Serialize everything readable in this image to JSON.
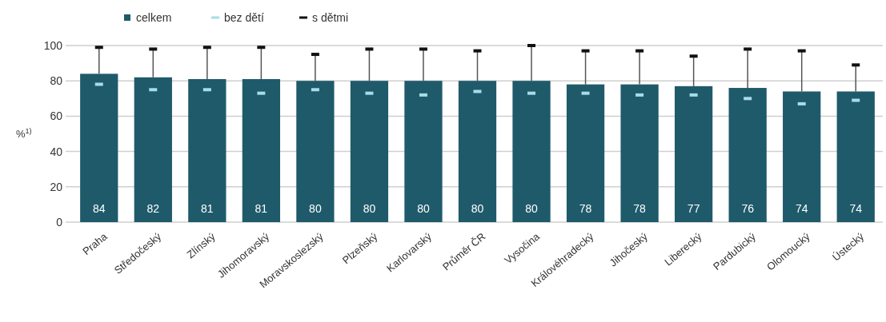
{
  "chart_data": {
    "type": "bar",
    "categories": [
      "Praha",
      "Středočeský",
      "Zlínský",
      "Jihomoravský",
      "Moravskoslezský",
      "Plzeňský",
      "Karlovarský",
      "Průměr ČR",
      "Vysočina",
      "Královéhradecký",
      "Jihočeský",
      "Liberecký",
      "Pardubický",
      "Olomoucký",
      "Ústecký"
    ],
    "ylabel": "%$^{1)}$",
    "ylim": [
      0,
      100
    ],
    "yticks": [
      0,
      20,
      40,
      60,
      80,
      100
    ],
    "grid": "y",
    "legend": "top left",
    "series": [
      {
        "name": "celkem",
        "color": "#1f5a6b",
        "values": [
          84,
          82,
          81,
          81,
          80,
          80,
          80,
          80,
          80,
          78,
          78,
          77,
          76,
          74,
          74
        ],
        "value_labels": [
          "84",
          "82",
          "81",
          "81",
          "80",
          "80",
          "80",
          "80",
          "80",
          "78",
          "78",
          "77",
          "76",
          "74",
          "74"
        ],
        "errors": [
          [
            84,
            99
          ],
          [
            82,
            98
          ],
          [
            81,
            99
          ],
          [
            81,
            99
          ],
          [
            80,
            95
          ],
          [
            80,
            98
          ],
          [
            80,
            98
          ],
          [
            80,
            97
          ],
          [
            80,
            100
          ],
          [
            78,
            97
          ],
          [
            78,
            97
          ],
          [
            77,
            94
          ],
          [
            76,
            98
          ],
          [
            74,
            97
          ],
          [
            74,
            89
          ]
        ]
      },
      {
        "name": "bez dětí",
        "type": "scatter",
        "color": "#a9dbe8",
        "values": [
          78,
          75,
          75,
          73,
          75,
          73,
          72,
          74,
          73,
          73,
          72,
          72,
          70,
          67,
          69
        ]
      },
      {
        "name": "s dětmi",
        "type": "scatter",
        "color": "#111111",
        "values": [
          99,
          98,
          99,
          99,
          95,
          98,
          98,
          97,
          100,
          97,
          97,
          94,
          98,
          97,
          89
        ]
      }
    ]
  }
}
